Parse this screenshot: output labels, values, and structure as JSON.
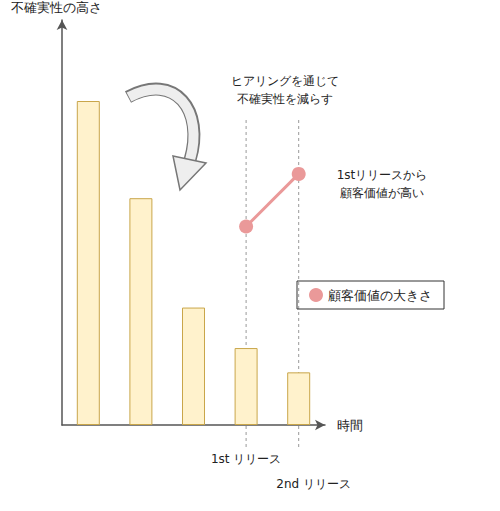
{
  "chart_data": {
    "type": "bar",
    "y_label": "不確実性の高さ",
    "x_label": "時間",
    "categories": [
      null,
      null,
      null,
      "1st リリース",
      "2nd リリース"
    ],
    "series": [
      {
        "type": "bar",
        "color": "#fff2cc",
        "values": [
          80,
          56,
          29,
          19,
          13
        ]
      },
      {
        "name": "顧客価値の大きさ",
        "type": "line",
        "color": "#ea9999",
        "marker": "circle",
        "values": [
          null,
          null,
          null,
          49,
          62
        ]
      }
    ],
    "ylim": [
      0,
      100
    ],
    "tick_labels": false,
    "grid": false,
    "legend": "right",
    "annotations": [
      "ヒアリングを通じて\n不確実性を減らす",
      "1stリリースから\n顧客価値が高い"
    ]
  }
}
